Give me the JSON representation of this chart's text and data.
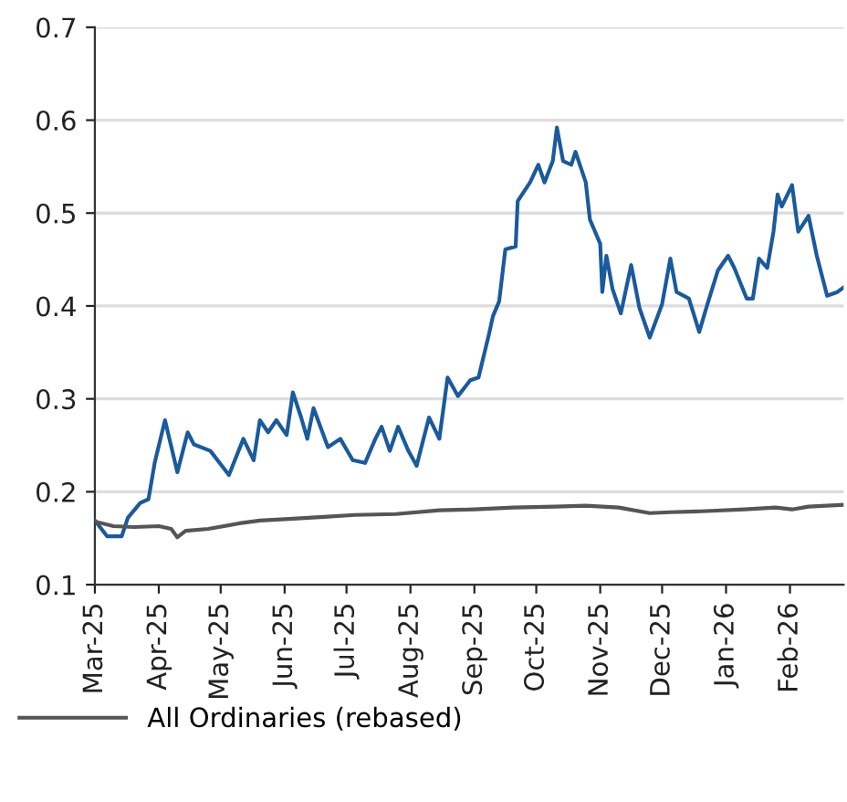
{
  "chart_data": {
    "type": "line",
    "ylim": [
      0.1,
      0.7
    ],
    "yticks": [
      0.1,
      0.2,
      0.3,
      0.4,
      0.5,
      0.6,
      0.7
    ],
    "xlim": [
      "2025-03-01",
      "2026-02-27"
    ],
    "xticks": [
      {
        "value": "2025-03-01",
        "label": "Mar-25"
      },
      {
        "value": "2025-04-01",
        "label": "Apr-25"
      },
      {
        "value": "2025-05-01",
        "label": "May-25"
      },
      {
        "value": "2025-06-01",
        "label": "Jun-25"
      },
      {
        "value": "2025-07-01",
        "label": "Jul-25"
      },
      {
        "value": "2025-08-01",
        "label": "Aug-25"
      },
      {
        "value": "2025-09-01",
        "label": "Sep-25"
      },
      {
        "value": "2025-10-01",
        "label": "Oct-25"
      },
      {
        "value": "2025-11-01",
        "label": "Nov-25"
      },
      {
        "value": "2025-12-01",
        "label": "Dec-25"
      },
      {
        "value": "2026-01-01",
        "label": "Jan-26"
      },
      {
        "value": "2026-02-01",
        "label": "Feb-26"
      }
    ],
    "grid": "y",
    "legend": "bottom left",
    "marker": "none",
    "line_style": "solid",
    "series": [
      {
        "color": "#1a5a9e",
        "x": [
          "2025-03-01",
          "2025-03-07",
          "2025-03-14",
          "2025-03-17",
          "2025-03-23",
          "2025-03-27",
          "2025-03-30",
          "2025-04-04",
          "2025-04-10",
          "2025-04-15",
          "2025-04-18",
          "2025-04-26",
          "2025-05-05",
          "2025-05-12",
          "2025-05-17",
          "2025-05-20",
          "2025-05-24",
          "2025-05-28",
          "2025-06-02",
          "2025-06-05",
          "2025-06-09",
          "2025-06-12",
          "2025-06-15",
          "2025-06-22",
          "2025-06-28",
          "2025-07-04",
          "2025-07-10",
          "2025-07-15",
          "2025-07-18",
          "2025-07-22",
          "2025-07-26",
          "2025-07-31",
          "2025-08-04",
          "2025-08-10",
          "2025-08-15",
          "2025-08-19",
          "2025-08-24",
          "2025-08-30",
          "2025-09-03",
          "2025-09-08",
          "2025-09-10",
          "2025-09-13",
          "2025-09-16",
          "2025-09-21",
          "2025-09-22",
          "2025-09-28",
          "2025-10-02",
          "2025-10-05",
          "2025-10-09",
          "2025-10-11",
          "2025-10-14",
          "2025-10-18",
          "2025-10-20",
          "2025-10-25",
          "2025-10-27",
          "2025-11-01",
          "2025-11-02",
          "2025-11-04",
          "2025-11-07",
          "2025-11-11",
          "2025-11-16",
          "2025-11-20",
          "2025-11-25",
          "2025-12-01",
          "2025-12-05",
          "2025-12-08",
          "2025-12-14",
          "2025-12-19",
          "2025-12-23",
          "2025-12-28",
          "2026-01-02",
          "2026-01-05",
          "2026-01-11",
          "2026-01-14",
          "2026-01-17",
          "2026-01-21",
          "2026-01-24",
          "2026-01-26",
          "2026-01-28",
          "2026-02-02",
          "2026-02-05",
          "2026-02-10",
          "2026-02-14",
          "2026-02-19",
          "2026-02-24",
          "2026-02-27"
        ],
        "values": [
          0.169,
          0.152,
          0.152,
          0.172,
          0.188,
          0.192,
          0.231,
          0.277,
          0.221,
          0.264,
          0.251,
          0.244,
          0.218,
          0.257,
          0.234,
          0.277,
          0.264,
          0.277,
          0.261,
          0.307,
          0.28,
          0.257,
          0.29,
          0.248,
          0.257,
          0.234,
          0.231,
          0.257,
          0.27,
          0.244,
          0.27,
          0.244,
          0.228,
          0.28,
          0.257,
          0.323,
          0.303,
          0.32,
          0.323,
          0.369,
          0.389,
          0.405,
          0.461,
          0.464,
          0.513,
          0.533,
          0.552,
          0.533,
          0.556,
          0.592,
          0.556,
          0.552,
          0.566,
          0.533,
          0.493,
          0.467,
          0.415,
          0.454,
          0.418,
          0.392,
          0.444,
          0.398,
          0.366,
          0.402,
          0.451,
          0.415,
          0.408,
          0.372,
          0.402,
          0.438,
          0.454,
          0.441,
          0.408,
          0.408,
          0.451,
          0.441,
          0.48,
          0.52,
          0.507,
          0.53,
          0.48,
          0.497,
          0.454,
          0.411,
          0.415,
          0.42
        ]
      },
      {
        "name": "All Ordinaries (rebased)",
        "color": "#555555",
        "x": [
          "2025-03-01",
          "2025-03-10",
          "2025-03-20",
          "2025-04-01",
          "2025-04-07",
          "2025-04-10",
          "2025-04-14",
          "2025-04-25",
          "2025-05-10",
          "2025-05-20",
          "2025-06-05",
          "2025-06-20",
          "2025-07-05",
          "2025-07-25",
          "2025-08-15",
          "2025-09-01",
          "2025-09-20",
          "2025-10-10",
          "2025-10-25",
          "2025-11-10",
          "2025-11-25",
          "2025-12-05",
          "2025-12-20",
          "2026-01-10",
          "2026-01-25",
          "2026-02-02",
          "2026-02-10",
          "2026-02-27"
        ],
        "values": [
          0.168,
          0.163,
          0.162,
          0.163,
          0.16,
          0.151,
          0.158,
          0.16,
          0.166,
          0.169,
          0.171,
          0.173,
          0.175,
          0.176,
          0.18,
          0.181,
          0.183,
          0.184,
          0.185,
          0.183,
          0.177,
          0.178,
          0.179,
          0.181,
          0.183,
          0.181,
          0.184,
          0.186
        ]
      }
    ]
  }
}
